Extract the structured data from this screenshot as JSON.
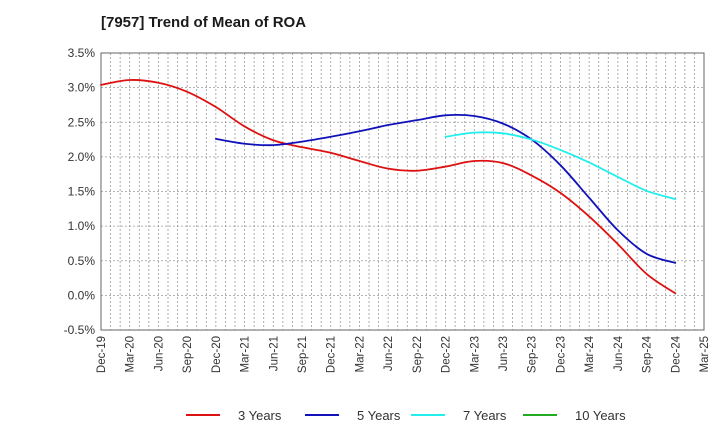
{
  "chart_data": {
    "type": "line",
    "title": "[7957]  Trend of Mean of ROA",
    "xlabel": "",
    "ylabel": "",
    "ylim": [
      -0.5,
      3.5
    ],
    "yticks": [
      "-0.5%",
      "0.0%",
      "0.5%",
      "1.0%",
      "1.5%",
      "2.0%",
      "2.5%",
      "3.0%",
      "3.5%"
    ],
    "ytick_values": [
      -0.5,
      0,
      0.5,
      1.0,
      1.5,
      2.0,
      2.5,
      3.0,
      3.5
    ],
    "categories": [
      "Dec-19",
      "Mar-20",
      "Jun-20",
      "Sep-20",
      "Dec-20",
      "Mar-21",
      "Jun-21",
      "Sep-21",
      "Dec-21",
      "Mar-22",
      "Jun-22",
      "Sep-22",
      "Dec-22",
      "Mar-23",
      "Jun-23",
      "Sep-23",
      "Dec-23",
      "Mar-24",
      "Jun-24",
      "Sep-24",
      "Dec-24",
      "Mar-25"
    ],
    "grid": "vertical dashed at every month, horizontal dashed at ticks",
    "legend_position": "bottom",
    "series": [
      {
        "name": "3 Years",
        "color": "#dd1111",
        "values": [
          3.04,
          3.11,
          3.07,
          2.94,
          2.72,
          2.44,
          2.24,
          2.14,
          2.06,
          1.94,
          1.83,
          1.8,
          1.86,
          1.94,
          1.91,
          1.73,
          1.48,
          1.14,
          0.74,
          0.31,
          0.03,
          null
        ]
      },
      {
        "name": "5 Years",
        "color": "#1111bb",
        "values": [
          null,
          null,
          null,
          null,
          2.26,
          2.19,
          2.17,
          2.22,
          2.29,
          2.37,
          2.46,
          2.53,
          2.6,
          2.59,
          2.48,
          2.25,
          1.88,
          1.41,
          0.94,
          0.6,
          0.47,
          null
        ]
      },
      {
        "name": "7 Years",
        "color": "#22eeee",
        "values": [
          null,
          null,
          null,
          null,
          null,
          null,
          null,
          null,
          null,
          null,
          null,
          null,
          2.29,
          2.35,
          2.34,
          2.25,
          2.1,
          1.92,
          1.71,
          1.51,
          1.39,
          null
        ]
      },
      {
        "name": "10 Years",
        "color": "#22aa22",
        "values": [
          null,
          null,
          null,
          null,
          null,
          null,
          null,
          null,
          null,
          null,
          null,
          null,
          null,
          null,
          null,
          null,
          null,
          null,
          null,
          null,
          null,
          null
        ]
      }
    ]
  }
}
